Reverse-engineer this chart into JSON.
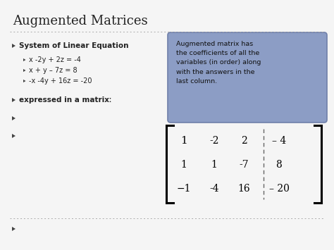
{
  "title": "Augmented Matrices",
  "bg_color": "#f5f5f5",
  "title_color": "#222222",
  "title_fontsize": 13,
  "body_fontsize": 7.5,
  "sub_fontsize": 7.0,
  "main_bullet": "System of Linear Equation",
  "sub_bullets": [
    "x -2y + 2z = -4",
    "x + y – 7z = 8",
    "-x -4y + 16z = -20"
  ],
  "matrix_label": "expressed in a matrixː",
  "callout_text": "Augmented matrix has\nthe coefficients of all the\nvariables (in order) along\nwith the answers in the\nlast column.",
  "callout_bg": "#8c9dc5",
  "callout_border": "#7080aa",
  "matrix_rows": [
    [
      "1",
      "-2",
      "2",
      "– 4"
    ],
    [
      "1",
      "1",
      "-7",
      "8"
    ],
    [
      "−1",
      "-4",
      "16",
      "– 20"
    ]
  ],
  "arrow_color": "#444444",
  "dot_color": "#aaaaaa"
}
